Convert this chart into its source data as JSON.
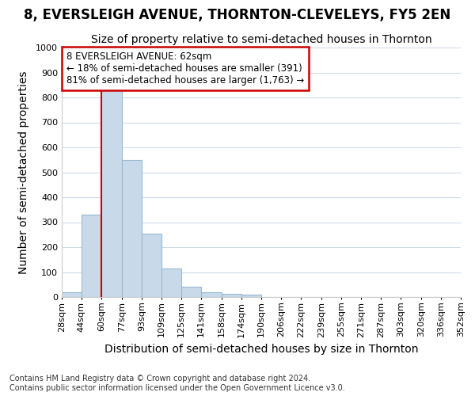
{
  "title": "8, EVERSLEIGH AVENUE, THORNTON-CLEVELEYS, FY5 2EN",
  "subtitle": "Size of property relative to semi-detached houses in Thornton",
  "xlabel": "Distribution of semi-detached houses by size in Thornton",
  "ylabel": "Number of semi-detached properties",
  "footnote1": "Contains HM Land Registry data © Crown copyright and database right 2024.",
  "footnote2": "Contains public sector information licensed under the Open Government Licence v3.0.",
  "bins": [
    28,
    44,
    60,
    77,
    93,
    109,
    125,
    141,
    158,
    174,
    190,
    206,
    222,
    239,
    255,
    271,
    287,
    303,
    320,
    336,
    352
  ],
  "bar_labels": [
    "28sqm",
    "44sqm",
    "60sqm",
    "77sqm",
    "93sqm",
    "109sqm",
    "125sqm",
    "141sqm",
    "158sqm",
    "174sqm",
    "190sqm",
    "206sqm",
    "222sqm",
    "239sqm",
    "255sqm",
    "271sqm",
    "287sqm",
    "303sqm",
    "320sqm",
    "336sqm",
    "352sqm"
  ],
  "values": [
    20,
    330,
    830,
    550,
    255,
    115,
    42,
    18,
    12,
    10,
    0,
    0,
    0,
    0,
    0,
    0,
    0,
    0,
    0,
    0
  ],
  "bar_color": "#c8daea",
  "bar_edge_color": "#9ab8d0",
  "red_line_x": 60,
  "red_line_color": "#cc0000",
  "annotation_text_line1": "8 EVERSLEIGH AVENUE: 62sqm",
  "annotation_text_line2": "← 18% of semi-detached houses are smaller (391)",
  "annotation_text_line3": "81% of semi-detached houses are larger (1,763) →",
  "annotation_box_color": "#ffffff",
  "annotation_box_edge": "#cc0000",
  "ylim": [
    0,
    1000
  ],
  "yticks": [
    0,
    100,
    200,
    300,
    400,
    500,
    600,
    700,
    800,
    900,
    1000
  ],
  "background_color": "#ffffff",
  "plot_bg_color": "#ffffff",
  "grid_color": "#d0dce8",
  "title_fontsize": 12,
  "subtitle_fontsize": 10,
  "axis_label_fontsize": 10,
  "tick_fontsize": 8,
  "footnote_fontsize": 7
}
